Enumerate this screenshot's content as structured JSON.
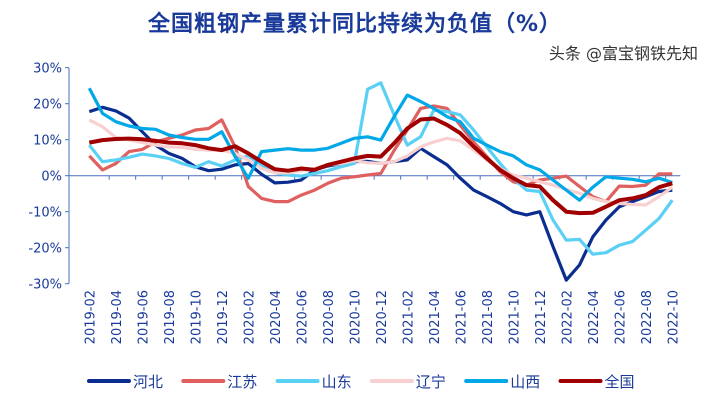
{
  "chart_data": {
    "type": "line",
    "title": "全国粗钢产量累计同比持续为负值（%）",
    "xlabel": "",
    "ylabel": "",
    "ylim": [
      -30,
      30
    ],
    "yticks": [
      30,
      20,
      10,
      0,
      -10,
      -20,
      -30
    ],
    "ytick_labels": [
      "30%",
      "20%",
      "10%",
      "0%",
      "-10%",
      "-20%",
      "-30%"
    ],
    "grid": false,
    "legend_position": "bottom",
    "x": [
      "2019-02",
      "2019-03",
      "2019-04",
      "2019-05",
      "2019-06",
      "2019-07",
      "2019-08",
      "2019-09",
      "2019-10",
      "2019-11",
      "2019-12",
      "2020-01",
      "2020-02",
      "2020-03",
      "2020-04",
      "2020-05",
      "2020-06",
      "2020-07",
      "2020-08",
      "2020-09",
      "2020-10",
      "2020-11",
      "2020-12",
      "2021-01",
      "2021-02",
      "2021-03",
      "2021-04",
      "2021-05",
      "2021-06",
      "2021-07",
      "2021-08",
      "2021-09",
      "2021-10",
      "2021-11",
      "2021-12",
      "2022-01",
      "2022-02",
      "2022-03",
      "2022-04",
      "2022-05",
      "2022-06",
      "2022-07",
      "2022-08",
      "2022-09",
      "2022-10"
    ],
    "xtick_labels": [
      "2019-02",
      "2019-04",
      "2019-06",
      "2019-08",
      "2019-10",
      "2019-12",
      "2020-02",
      "2020-04",
      "2020-06",
      "2020-08",
      "2020-10",
      "2020-12",
      "2021-02",
      "2021-04",
      "2021-06",
      "2021-08",
      "2021-10",
      "2021-12",
      "2022-02",
      "2022-04",
      "2022-06",
      "2022-08",
      "2022-10"
    ],
    "series": [
      {
        "name": "河北",
        "color": "#0a2d8f",
        "values": [
          17.8,
          19,
          18,
          16,
          12.2,
          8.5,
          6.2,
          4.8,
          2.5,
          1.4,
          1.8,
          3,
          3.4,
          0.4,
          -2,
          -1.8,
          -1.2,
          1.6,
          2.7,
          3.4,
          3.9,
          4,
          3.4,
          3.9,
          4.4,
          7.6,
          5.3,
          3,
          -0.7,
          -4,
          -5.8,
          -7.7,
          -10,
          -10.9,
          -10,
          -19.7,
          -29,
          -24.8,
          -17,
          -12.3,
          -8.6,
          -7.2,
          -5.8,
          -4.4,
          -4
        ]
      },
      {
        "name": "江苏",
        "color": "#e06060",
        "values": [
          5.5,
          1.6,
          3.4,
          6.7,
          7.3,
          9.4,
          10.4,
          11.3,
          12.7,
          13.1,
          15.5,
          8,
          -3,
          -6.3,
          -7.2,
          -7.2,
          -5.4,
          -4,
          -2.1,
          -0.7,
          -0.3,
          0.2,
          0.6,
          7,
          12.7,
          18.7,
          19.4,
          18.7,
          14,
          9.4,
          5.3,
          1.1,
          -1.7,
          -2.6,
          -1.2,
          -0.7,
          -0.1,
          -3,
          -5.8,
          -7.2,
          -2.9,
          -3,
          -2.6,
          0.5,
          0.5
        ]
      },
      {
        "name": "山东",
        "color": "#5bd0f5",
        "values": [
          8.5,
          3.9,
          4.4,
          5.1,
          6,
          5.5,
          4.8,
          3.4,
          2.3,
          3.9,
          2.7,
          4.4,
          5.5,
          3,
          0.8,
          0.2,
          -0.1,
          0.6,
          1.4,
          2.5,
          3.4,
          24,
          25.8,
          16.9,
          8.5,
          10.8,
          18.2,
          17.8,
          16.9,
          12.7,
          8,
          3.4,
          -0.7,
          -4,
          -4.4,
          -12.3,
          -17.9,
          -17.7,
          -21.8,
          -21.4,
          -19.3,
          -18.3,
          -15.1,
          -11.9,
          -6.8
        ]
      },
      {
        "name": "辽宁",
        "color": "#f8d0d0",
        "values": [
          15.5,
          13.6,
          10.6,
          9.9,
          9.2,
          8.5,
          8,
          7.9,
          7.3,
          7.1,
          7.1,
          6.2,
          4.4,
          2,
          0.8,
          0.8,
          1.4,
          2,
          3,
          3.4,
          4.2,
          3.6,
          3.4,
          3.9,
          5.5,
          8,
          9.4,
          10.4,
          9.7,
          7.1,
          4.4,
          2,
          0.2,
          -0.7,
          -1.7,
          -2.6,
          -3.8,
          -4.9,
          -6.3,
          -7.2,
          -7.7,
          -8,
          -8.1,
          -5.8,
          -3.2
        ]
      },
      {
        "name": "山西",
        "color": "#00a8e8",
        "values": [
          24.3,
          17.3,
          15,
          13.8,
          13.1,
          12.9,
          11.3,
          10.6,
          10.1,
          10.1,
          12.2,
          5.3,
          -0.7,
          6.7,
          7.1,
          7.5,
          7.1,
          7.1,
          7.6,
          9,
          10.4,
          10.8,
          9.9,
          16.4,
          22.4,
          20.6,
          18.7,
          16.4,
          15,
          10.4,
          8.5,
          6.7,
          5.5,
          3,
          1.6,
          -1.2,
          -4,
          -6.8,
          -3.2,
          -0.3,
          -0.7,
          -1,
          -1.7,
          -0.7,
          -1.9
        ]
      },
      {
        "name": "全国",
        "color": "#a00000",
        "values": [
          9.2,
          9.9,
          10.2,
          10.3,
          10.1,
          9.7,
          9.2,
          9,
          8.5,
          7.6,
          7.1,
          8.2,
          6.2,
          3.9,
          1.8,
          1.4,
          2,
          1.6,
          3,
          3.9,
          4.8,
          5.5,
          5.3,
          9,
          13.1,
          15.6,
          15.9,
          14.1,
          11.8,
          8.1,
          4.8,
          1.6,
          -0.7,
          -2.6,
          -3,
          -6.8,
          -10,
          -10.4,
          -10.3,
          -8.6,
          -6.8,
          -6.3,
          -5.4,
          -3.2,
          -2.1
        ]
      }
    ],
    "axis_color": "#4a6fc0",
    "title_color": "#1a3a9a"
  },
  "watermark": "头条 @富宝钢铁先知"
}
